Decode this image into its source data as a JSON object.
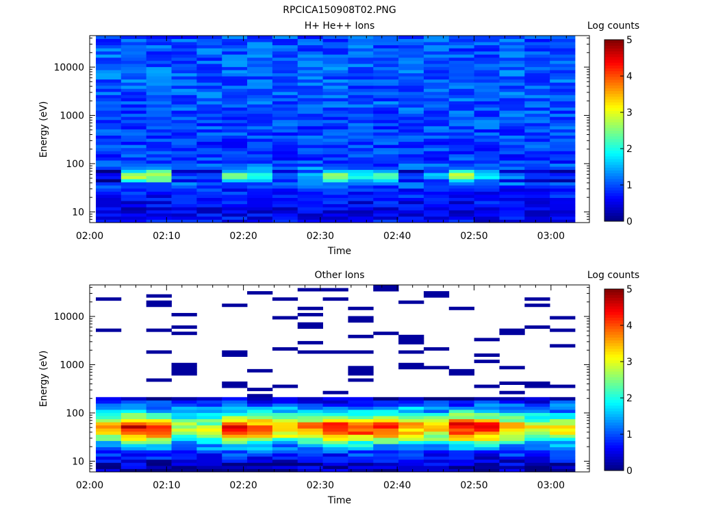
{
  "figure_title": "RPCICA150908T02.PNG",
  "chart_data": [
    {
      "type": "heatmap",
      "title": "H+ He++ Ions",
      "xlabel": "Time",
      "ylabel": "Energy (eV)",
      "y_scale": "log",
      "ylim": [
        6,
        45000
      ],
      "x_ticks": [
        "02:00",
        "02:10",
        "02:20",
        "02:30",
        "02:40",
        "02:50",
        "03:00"
      ],
      "y_ticks": [
        "10",
        "100",
        "1000",
        "10000"
      ],
      "colorbar": {
        "label": "Log counts",
        "range": [
          0,
          5
        ],
        "ticks": [
          "0",
          "1",
          "2",
          "3",
          "4",
          "5"
        ]
      },
      "time_bins": [
        "02:00",
        "02:03",
        "02:07",
        "02:10",
        "02:13",
        "02:16",
        "02:20",
        "02:23",
        "02:26",
        "02:30",
        "02:33",
        "02:36",
        "02:40",
        "02:43",
        "02:46",
        "02:50",
        "02:53",
        "02:56",
        "03:00"
      ],
      "energy_profile": [
        {
          "energy_eV": 8,
          "log_counts": 0.6
        },
        {
          "energy_eV": 11,
          "log_counts": 0.5
        },
        {
          "energy_eV": 15,
          "log_counts": 0.6
        },
        {
          "energy_eV": 22,
          "log_counts": 0.7
        },
        {
          "energy_eV": 30,
          "log_counts": 0.8
        },
        {
          "energy_eV": 40,
          "log_counts": 1.2
        },
        {
          "energy_eV": 55,
          "log_counts": 2.6
        },
        {
          "energy_eV": 75,
          "log_counts": 1.3
        },
        {
          "energy_eV": 100,
          "log_counts": 0.9
        },
        {
          "energy_eV": 200,
          "log_counts": 0.9
        },
        {
          "energy_eV": 1000,
          "log_counts": 1.0
        },
        {
          "energy_eV": 10000,
          "log_counts": 1.1
        },
        {
          "energy_eV": 40000,
          "log_counts": 1.0
        }
      ],
      "peak_log_counts_per_bin": [
        0.8,
        3.0,
        3.0,
        1.2,
        1.3,
        2.7,
        2.2,
        1.4,
        2.0,
        3.0,
        2.5,
        2.3,
        1.5,
        1.8,
        2.9,
        2.3,
        1.4,
        1.3,
        1.3
      ]
    },
    {
      "type": "heatmap",
      "title": "Other Ions",
      "xlabel": "Time",
      "ylabel": "Energy (eV)",
      "y_scale": "log",
      "ylim": [
        6,
        45000
      ],
      "x_ticks": [
        "02:00",
        "02:10",
        "02:20",
        "02:30",
        "02:40",
        "02:50",
        "03:00"
      ],
      "y_ticks": [
        "10",
        "100",
        "1000",
        "10000"
      ],
      "colorbar": {
        "label": "Log counts",
        "range": [
          0,
          5
        ],
        "ticks": [
          "0",
          "1",
          "2",
          "3",
          "4",
          "5"
        ]
      },
      "time_bins": [
        "02:00",
        "02:03",
        "02:07",
        "02:10",
        "02:13",
        "02:16",
        "02:20",
        "02:23",
        "02:26",
        "02:30",
        "02:33",
        "02:36",
        "02:40",
        "02:43",
        "02:46",
        "02:50",
        "02:53",
        "02:56",
        "03:00"
      ],
      "energy_profile": [
        {
          "energy_eV": 8,
          "log_counts": 0.3
        },
        {
          "energy_eV": 11,
          "log_counts": 0.5
        },
        {
          "energy_eV": 15,
          "log_counts": 0.9
        },
        {
          "energy_eV": 22,
          "log_counts": 1.8
        },
        {
          "energy_eV": 30,
          "log_counts": 3.2
        },
        {
          "energy_eV": 40,
          "log_counts": 4.0
        },
        {
          "energy_eV": 55,
          "log_counts": 4.4
        },
        {
          "energy_eV": 75,
          "log_counts": 3.0
        },
        {
          "energy_eV": 100,
          "log_counts": 2.0
        },
        {
          "energy_eV": 150,
          "log_counts": 1.0
        },
        {
          "energy_eV": 200,
          "log_counts": 0.4
        },
        {
          "energy_eV": 1000,
          "log_counts": 0.1
        },
        {
          "energy_eV": 40000,
          "log_counts": 0.1
        }
      ],
      "peak_log_counts_per_bin": [
        3.4,
        4.5,
        4.2,
        2.8,
        2.9,
        4.6,
        4.0,
        3.5,
        3.8,
        4.6,
        4.3,
        4.1,
        3.7,
        3.4,
        4.6,
        4.4,
        3.6,
        3.2,
        3.3
      ]
    }
  ]
}
